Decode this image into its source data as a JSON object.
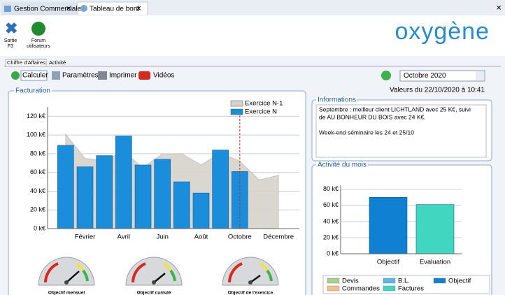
{
  "tabs": [
    "Gestion Commerciale",
    "Tableau de bord"
  ],
  "toolbar": [
    {
      "label": "Sortie",
      "sub": "F3"
    },
    {
      "label": "Forum",
      "sub": "utilisateurs"
    }
  ],
  "logo": "oxygène",
  "subtabs": [
    "Chiffre d'Affaires",
    "Activité"
  ],
  "buttons": [
    "Calculer",
    "Paramètres",
    "Imprimer",
    "Vidéos"
  ],
  "period": "Octobre 2020",
  "updated": "Valeurs du 22/10/2020 à 10:41",
  "informations": {
    "title": "Informations",
    "lines": [
      "Septembre : meilleur client LICHTLAND avec 25 K€, suivi",
      "de AU BONHEUR DU BOIS avec 24 K€.",
      "",
      "Week-end séminaire les 24 et 25/10"
    ]
  },
  "gauges": [
    "Objectif mensuel",
    "Objectif cumulé",
    "Objectif de l'exercice"
  ],
  "chart_data": [
    {
      "type": "bar",
      "title": "Facturation",
      "categories": [
        null,
        "Février",
        null,
        "Avril",
        null,
        "Juin",
        null,
        "Août",
        null,
        "Octobre",
        null,
        "Décembre"
      ],
      "series": [
        {
          "name": "Exercice N-1",
          "type": "area",
          "color": "#d6d3cc",
          "values": [
            101,
            75,
            73,
            82,
            65,
            80,
            80,
            68,
            81,
            72,
            52,
            57
          ]
        },
        {
          "name": "Exercice N",
          "color": "#1a8ddb",
          "values": [
            89,
            66,
            78,
            99,
            68,
            74,
            50,
            38,
            84,
            61,
            null,
            null
          ]
        }
      ],
      "ylim": [
        0,
        130
      ],
      "yticks": [
        {
          "value": 0,
          "label": "0 k€"
        },
        {
          "value": 20,
          "label": "20 k€"
        },
        {
          "value": 40,
          "label": "40 k€"
        },
        {
          "value": 60,
          "label": "60 k€"
        },
        {
          "value": 80,
          "label": "80 k€"
        },
        {
          "value": 100,
          "label": "100 k€"
        },
        {
          "value": 120,
          "label": "120 k€"
        }
      ],
      "grid": true
    },
    {
      "type": "bar",
      "stacked": true,
      "title": "Activité du mois",
      "categories": [
        "Objectif",
        "Evaluation"
      ],
      "series": [
        {
          "name": "Devis",
          "color": "#a9d18e",
          "values": [
            null,
            null
          ]
        },
        {
          "name": "B.L.",
          "color": "#5bb8e8",
          "values": [
            null,
            null
          ]
        },
        {
          "name": "Objectif",
          "color": "#0f80d2",
          "values": [
            70,
            null
          ]
        },
        {
          "name": "Commandes",
          "color": "#f2c08a",
          "values": [
            null,
            null
          ]
        },
        {
          "name": "Factures",
          "color": "#40d6c0",
          "values": [
            null,
            61
          ]
        }
      ],
      "ylim": [
        0,
        85
      ],
      "yticks": [
        {
          "value": 0,
          "label": "0 k€"
        },
        {
          "value": 20,
          "label": "20 k€"
        },
        {
          "value": 40,
          "label": "40 k€"
        },
        {
          "value": 60,
          "label": "60 k€"
        },
        {
          "value": 80,
          "label": "80 k€"
        }
      ],
      "grid": true
    }
  ]
}
